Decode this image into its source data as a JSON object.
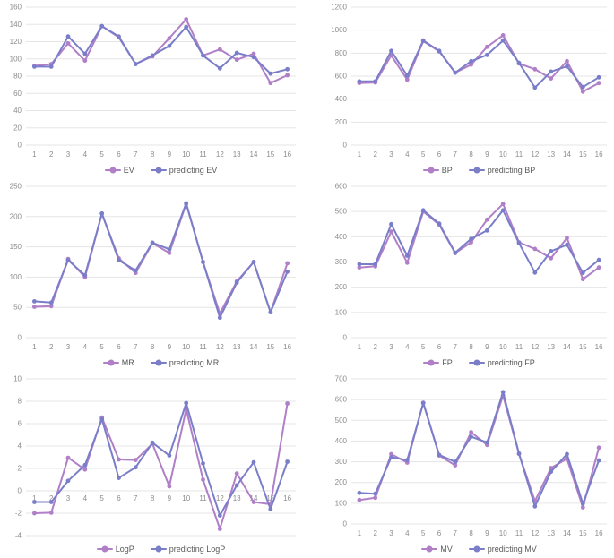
{
  "page": {
    "background": "#ffffff"
  },
  "colors": {
    "series_actual": "#b07fc7",
    "series_predicted": "#7a7ec9",
    "grid": "#e5e5e5",
    "tick_text": "#8c8c8c",
    "legend_text": "#595959"
  },
  "chart_data": [
    {
      "id": "EV",
      "type": "line",
      "title": "",
      "xlabel": "",
      "ylabel": "",
      "grid": "horizontal",
      "legend_position": "bottom",
      "markers": true,
      "x": [
        1,
        2,
        3,
        4,
        5,
        6,
        7,
        8,
        9,
        10,
        11,
        12,
        13,
        14,
        15,
        16
      ],
      "ylim": [
        0,
        160
      ],
      "y_step": 20,
      "series": [
        {
          "name": "EV",
          "values": [
            92,
            94,
            118,
            98,
            138,
            125,
            94,
            103,
            124,
            146,
            104,
            111,
            99,
            106,
            72,
            81
          ]
        },
        {
          "name": "predicting EV",
          "values": [
            91,
            91,
            126,
            106,
            138,
            126,
            94,
            104,
            115,
            137,
            104,
            89,
            107,
            102,
            83,
            88
          ]
        }
      ]
    },
    {
      "id": "BP",
      "type": "line",
      "title": "",
      "xlabel": "",
      "ylabel": "",
      "grid": "horizontal",
      "legend_position": "bottom",
      "markers": true,
      "x": [
        1,
        2,
        3,
        4,
        5,
        6,
        7,
        8,
        9,
        10,
        11,
        12,
        13,
        14,
        15,
        16
      ],
      "ylim": [
        0,
        1200
      ],
      "y_step": 200,
      "series": [
        {
          "name": "BP",
          "values": [
            540,
            545,
            780,
            570,
            905,
            815,
            630,
            700,
            855,
            955,
            710,
            660,
            580,
            730,
            465,
            540
          ]
        },
        {
          "name": "predicting BP",
          "values": [
            555,
            555,
            820,
            605,
            910,
            820,
            630,
            730,
            785,
            910,
            715,
            500,
            640,
            685,
            505,
            590
          ]
        }
      ]
    },
    {
      "id": "MR",
      "type": "line",
      "title": "",
      "xlabel": "",
      "ylabel": "",
      "grid": "horizontal",
      "legend_position": "bottom",
      "markers": true,
      "x": [
        1,
        2,
        3,
        4,
        5,
        6,
        7,
        8,
        9,
        10,
        11,
        12,
        13,
        14,
        15,
        16
      ],
      "ylim": [
        0,
        250
      ],
      "y_step": 50,
      "series": [
        {
          "name": "MR",
          "values": [
            51,
            52,
            130,
            100,
            205,
            131,
            107,
            156,
            140,
            221,
            125,
            40,
            93,
            125,
            42,
            123
          ]
        },
        {
          "name": "predicting MR",
          "values": [
            60,
            58,
            128,
            103,
            205,
            128,
            111,
            157,
            146,
            222,
            125,
            33,
            91,
            125,
            42,
            109
          ]
        }
      ]
    },
    {
      "id": "FP",
      "type": "line",
      "title": "",
      "xlabel": "",
      "ylabel": "",
      "grid": "horizontal",
      "legend_position": "bottom",
      "markers": true,
      "x": [
        1,
        2,
        3,
        4,
        5,
        6,
        7,
        8,
        9,
        10,
        11,
        12,
        13,
        14,
        15,
        16
      ],
      "ylim": [
        0,
        600
      ],
      "y_step": 100,
      "series": [
        {
          "name": "FP",
          "values": [
            278,
            283,
            420,
            297,
            500,
            448,
            335,
            378,
            468,
            530,
            378,
            352,
            315,
            395,
            232,
            278
          ]
        },
        {
          "name": "predicting FP",
          "values": [
            291,
            291,
            450,
            325,
            505,
            452,
            337,
            392,
            425,
            505,
            375,
            258,
            343,
            368,
            257,
            308
          ]
        }
      ]
    },
    {
      "id": "LogP",
      "type": "line",
      "title": "",
      "xlabel": "",
      "ylabel": "",
      "grid": "horizontal",
      "legend_position": "bottom",
      "markers": true,
      "x": [
        1,
        2,
        3,
        4,
        5,
        6,
        7,
        8,
        9,
        10,
        11,
        12,
        13,
        14,
        15,
        16
      ],
      "ylim": [
        -4,
        10
      ],
      "y_step": 2,
      "series": [
        {
          "name": "LogP",
          "values": [
            -2.0,
            -1.95,
            2.95,
            1.9,
            6.55,
            2.8,
            2.75,
            4.2,
            0.4,
            7.3,
            1.0,
            -3.4,
            1.55,
            -1.0,
            -1.2,
            7.8
          ]
        },
        {
          "name": "predicting LogP",
          "values": [
            -1.0,
            -1.0,
            0.9,
            2.3,
            6.4,
            1.15,
            2.1,
            4.3,
            3.15,
            7.85,
            2.45,
            -2.2,
            0.5,
            2.55,
            -1.65,
            2.6
          ]
        }
      ]
    },
    {
      "id": "MV",
      "type": "line",
      "title": "",
      "xlabel": "",
      "ylabel": "",
      "grid": "horizontal",
      "legend_position": "bottom",
      "markers": true,
      "x": [
        1,
        2,
        3,
        4,
        5,
        6,
        7,
        8,
        9,
        10,
        11,
        12,
        13,
        14,
        15,
        16
      ],
      "ylim": [
        0,
        700
      ],
      "y_step": 100,
      "series": [
        {
          "name": "MV",
          "values": [
            116,
            126,
            337,
            296,
            585,
            330,
            283,
            443,
            381,
            620,
            338,
            110,
            270,
            315,
            80,
            368
          ]
        },
        {
          "name": "predicting MV",
          "values": [
            150,
            146,
            322,
            308,
            583,
            333,
            300,
            421,
            393,
            636,
            340,
            85,
            252,
            337,
            98,
            307
          ]
        }
      ]
    }
  ]
}
